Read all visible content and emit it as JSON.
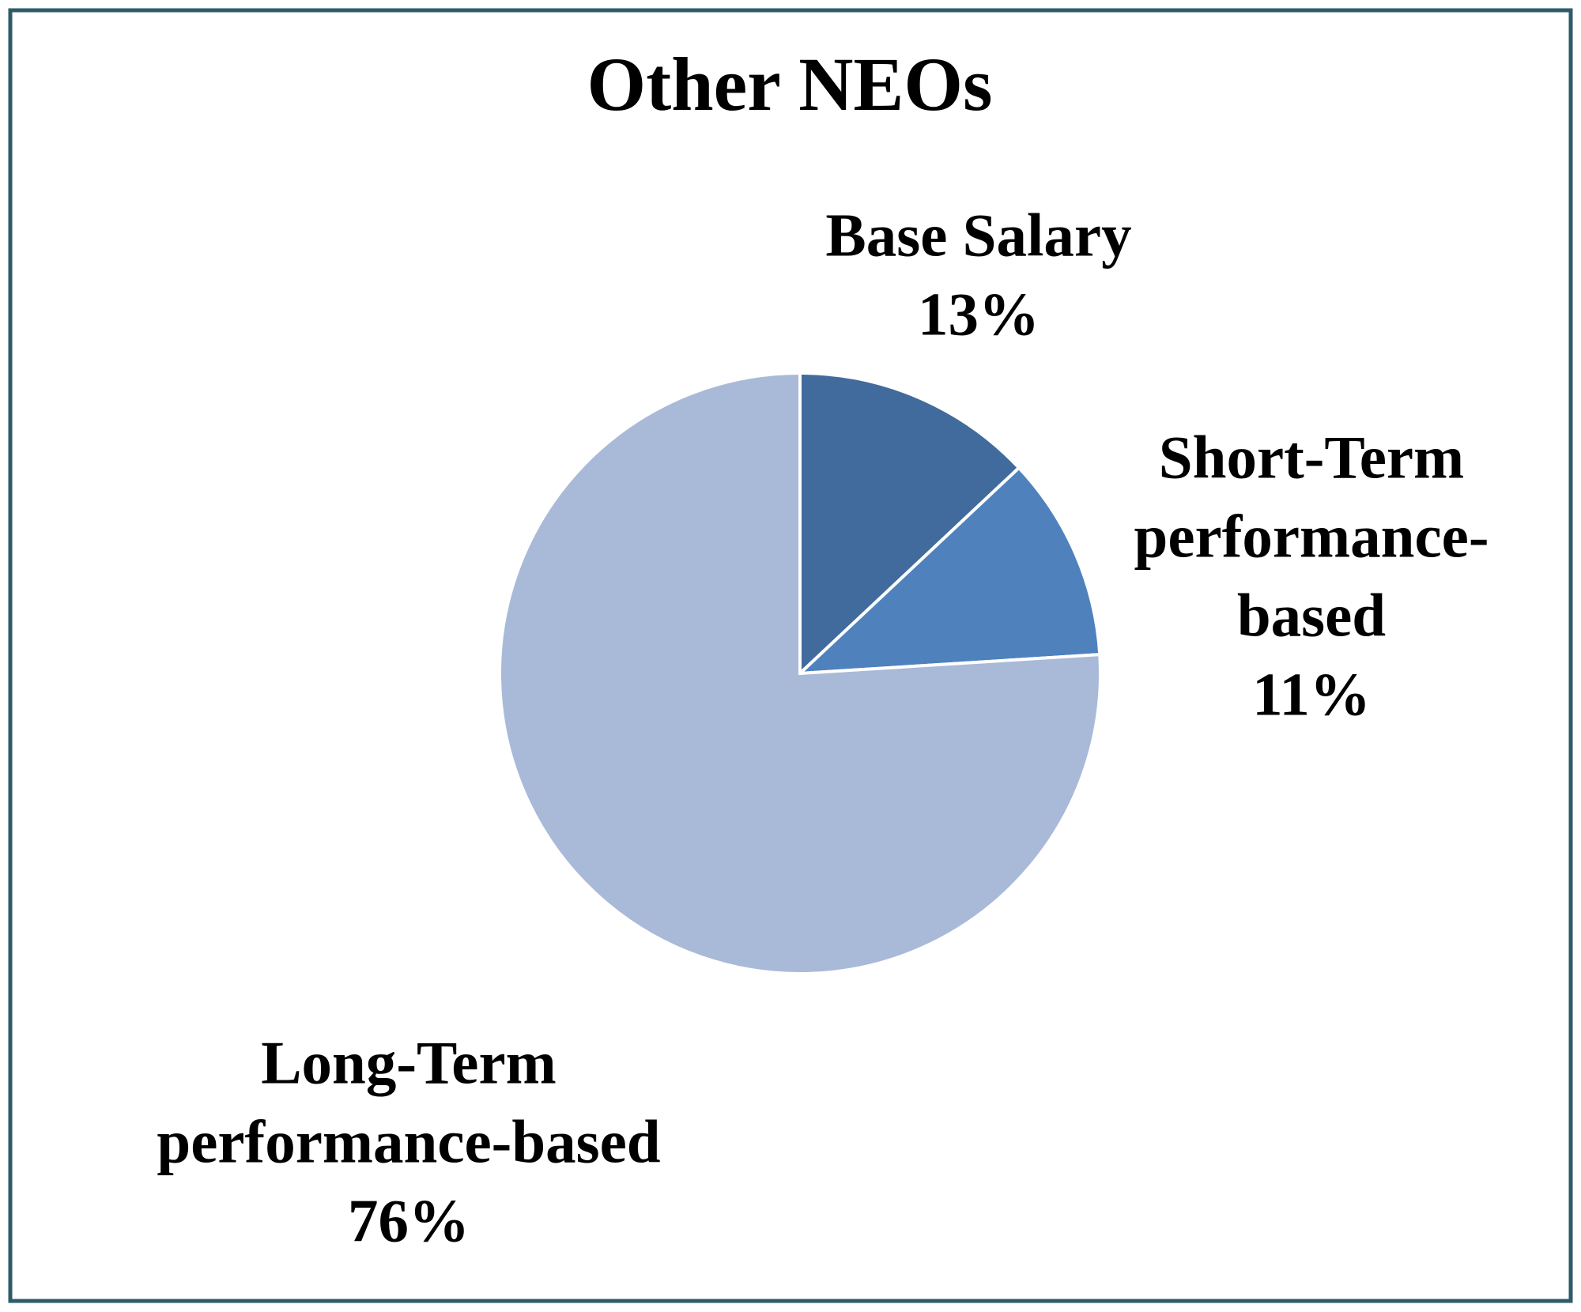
{
  "chart_data": {
    "type": "pie",
    "title": "Other NEOs",
    "categories": [
      [
        "Base Salary"
      ],
      [
        "Short-Term",
        "performance-",
        "based"
      ],
      [
        "Long-Term",
        "performance-based"
      ]
    ],
    "values": [
      13,
      11,
      76
    ],
    "value_labels": [
      "13%",
      "11%",
      "76%"
    ],
    "colors": [
      "#416b9c",
      "#4f81bd",
      "#a9b9d8"
    ]
  }
}
